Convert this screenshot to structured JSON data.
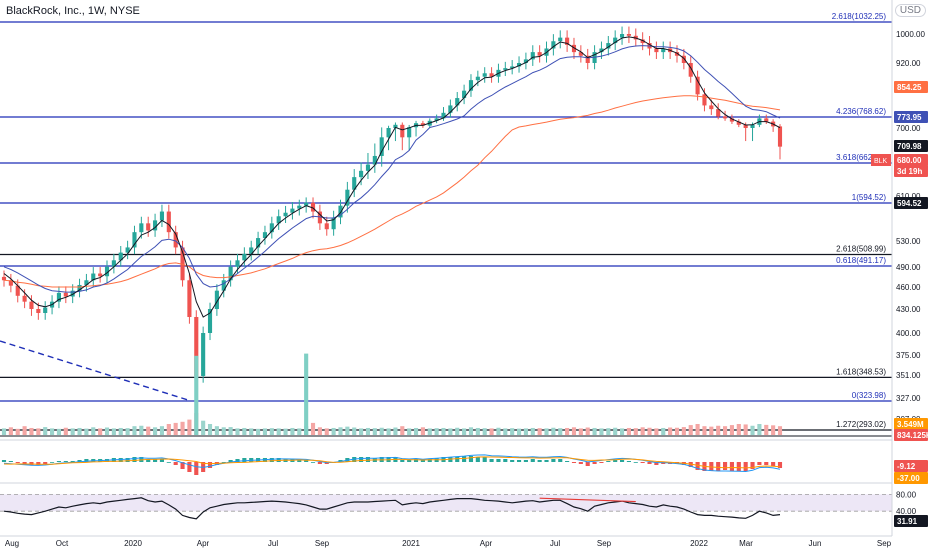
{
  "header": {
    "title": "BlackRock, Inc., 1W, NYSE",
    "currency": "USD"
  },
  "colors": {
    "up": "#26a69a",
    "down": "#ef5350",
    "ema_fast": "#131722",
    "ema_mid": "#3f51b5",
    "ema_slow": "#ff7043",
    "hline": "#1f2fb7",
    "volume_spike": "#7fcfc4",
    "rsi_bg": "#ede7f6",
    "rsi_line": "#131722",
    "divergence": "#e53935",
    "trend": "#1f2fb7"
  },
  "chart_data": {
    "type": "candlestick",
    "price_scale": {
      "ticks": [
        "1000.00",
        "920.00",
        "850.00",
        "700.00",
        "610.00",
        "530.00",
        "490.00",
        "460.00",
        "430.00",
        "400.00",
        "375.00",
        "351.00",
        "327.00",
        "307.00"
      ]
    },
    "time_axis": {
      "ticks": [
        "Aug",
        "Oct",
        "2020",
        "Apr",
        "Jul",
        "Sep",
        "2021",
        "Apr",
        "Jul",
        "Sep",
        "2022",
        "Mar",
        "Jun",
        "Sep"
      ]
    },
    "horizontal_levels": [
      {
        "label": "2.618(1032.25)",
        "value": 1032.25
      },
      {
        "label": "4.236(768.62)",
        "value": 768.62
      },
      {
        "label": "3.618(662.46)",
        "value": 662.46
      },
      {
        "label": "1(594.52)",
        "value": 594.52
      },
      {
        "label": "2.618(508.99)",
        "value": 508.99
      },
      {
        "label": "0.618(491.17)",
        "value": 491.17
      },
      {
        "label": "1.618(348.53)",
        "value": 348.53
      },
      {
        "label": "0(323.98)",
        "value": 323.98
      },
      {
        "label": "1.272(293.02)",
        "value": 293.02
      }
    ],
    "price_badges": [
      {
        "text": "854.25",
        "value": 854.25,
        "color": "#ff7043"
      },
      {
        "text": "773.95",
        "value": 773.95,
        "color": "#3f51b5"
      },
      {
        "text": "709.98",
        "value": 709.98,
        "color": "#131722"
      },
      {
        "text": "680.00",
        "value": 680.0,
        "color": "#ef5350"
      },
      {
        "text": "3d 19h",
        "value": 670.0,
        "color": "#ef5350"
      },
      {
        "text": "594.52",
        "value": 594.52,
        "color": "#131722"
      }
    ],
    "symbol_badge": "BLK",
    "closes": [
      470,
      462,
      448,
      440,
      430,
      425,
      432,
      440,
      452,
      447,
      455,
      463,
      470,
      480,
      476,
      490,
      500,
      512,
      520,
      545,
      560,
      548,
      565,
      580,
      545,
      520,
      470,
      420,
      350,
      400,
      430,
      455,
      470,
      490,
      500,
      510,
      520,
      535,
      545,
      560,
      572,
      578,
      585,
      590,
      595,
      580,
      560,
      550,
      570,
      590,
      620,
      640,
      650,
      660,
      670,
      690,
      700,
      720,
      690,
      705,
      730,
      715,
      745,
      760,
      780,
      800,
      820,
      840,
      870,
      880,
      890,
      880,
      900,
      905,
      910,
      920,
      930,
      950,
      940,
      960,
      980,
      990,
      970,
      950,
      940,
      920,
      950,
      960,
      975,
      990,
      1000,
      995,
      985,
      975,
      960,
      950,
      960,
      950,
      940,
      920,
      880,
      830,
      800,
      790,
      770,
      760,
      740,
      720,
      700,
      720,
      760,
      740,
      710,
      680
    ],
    "ema_fast": [
      480,
      472,
      462,
      452,
      442,
      435,
      433,
      436,
      443,
      446,
      450,
      456,
      463,
      471,
      474,
      481,
      490,
      500,
      510,
      525,
      540,
      545,
      553,
      565,
      558,
      542,
      513,
      480,
      440,
      420,
      425,
      440,
      455,
      472,
      486,
      498,
      509,
      522,
      534,
      547,
      560,
      569,
      577,
      584,
      590,
      586,
      575,
      564,
      566,
      578,
      599,
      620,
      635,
      648,
      659,
      675,
      688,
      704,
      698,
      701,
      716,
      716,
      731,
      746,
      763,
      782,
      801,
      821,
      845,
      863,
      877,
      879,
      890,
      898,
      904,
      912,
      921,
      936,
      938,
      949,
      965,
      978,
      974,
      962,
      951,
      935,
      943,
      952,
      964,
      977,
      989,
      992,
      989,
      982,
      971,
      960,
      960,
      955,
      947,
      933,
      906,
      868,
      834,
      812,
      791,
      775,
      757,
      738,
      719,
      720,
      740,
      740,
      725,
      702
    ],
    "ema_mid": [
      490,
      486,
      481,
      475,
      469,
      463,
      458,
      455,
      454,
      453,
      453,
      454,
      456,
      460,
      462,
      466,
      472,
      479,
      486,
      496,
      506,
      513,
      521,
      531,
      533,
      530,
      520,
      503,
      479,
      465,
      460,
      461,
      465,
      472,
      480,
      488,
      496,
      505,
      514,
      524,
      534,
      543,
      552,
      560,
      568,
      572,
      571,
      569,
      569,
      574,
      584,
      595,
      606,
      617,
      628,
      641,
      653,
      666,
      670,
      676,
      687,
      693,
      703,
      714,
      727,
      741,
      756,
      772,
      790,
      805,
      818,
      827,
      839,
      850,
      860,
      870,
      880,
      892,
      899,
      909,
      921,
      932,
      936,
      937,
      937,
      934,
      936,
      939,
      944,
      951,
      959,
      964,
      967,
      968,
      967,
      965,
      965,
      963,
      960,
      953,
      940,
      922,
      901,
      884,
      866,
      850,
      833,
      815,
      798,
      789,
      787,
      783,
      774,
      762
    ],
    "ema_slow": [
      470,
      469,
      467,
      466,
      464,
      462,
      461,
      460,
      460,
      460,
      460,
      460,
      461,
      462,
      463,
      464,
      466,
      468,
      471,
      475,
      479,
      483,
      487,
      492,
      495,
      496,
      494,
      490,
      482,
      477,
      475,
      474,
      474,
      475,
      477,
      479,
      481,
      484,
      487,
      491,
      495,
      499,
      503,
      508,
      512,
      515,
      517,
      518,
      520,
      523,
      527,
      532,
      538,
      544,
      550,
      557,
      564,
      571,
      576,
      582,
      589,
      594,
      601,
      608,
      615,
      623,
      631,
      640,
      650,
      659,
      668,
      675,
      683,
      691,
      698,
      706,
      713,
      722,
      729,
      737,
      746,
      754,
      760,
      765,
      770,
      773,
      778,
      782,
      787,
      793,
      798,
      803,
      808,
      812,
      815,
      818,
      821,
      823,
      825,
      826,
      826,
      825,
      823,
      820,
      817,
      814,
      810,
      806,
      801,
      798,
      796,
      794,
      791,
      788
    ],
    "volume": [
      0.3,
      0.35,
      0.28,
      0.4,
      0.32,
      0.3,
      0.36,
      0.3,
      0.28,
      0.33,
      0.3,
      0.32,
      0.29,
      0.35,
      0.3,
      0.34,
      0.3,
      0.32,
      0.31,
      0.4,
      0.42,
      0.38,
      0.35,
      0.4,
      0.5,
      0.55,
      0.6,
      0.7,
      1.0,
      0.65,
      0.5,
      0.4,
      0.35,
      0.36,
      0.3,
      0.32,
      0.3,
      0.28,
      0.3,
      0.31,
      0.3,
      0.29,
      0.32,
      0.3,
      0.4,
      0.55,
      0.35,
      0.3,
      0.32,
      0.35,
      0.38,
      0.34,
      0.3,
      0.32,
      0.31,
      0.33,
      0.3,
      0.34,
      0.4,
      0.3,
      0.32,
      0.35,
      0.3,
      0.31,
      0.32,
      0.3,
      0.33,
      0.3,
      0.35,
      0.32,
      0.31,
      0.3,
      0.33,
      0.3,
      0.31,
      0.29,
      0.3,
      0.32,
      0.31,
      0.3,
      0.33,
      0.31,
      0.32,
      0.35,
      0.3,
      0.34,
      0.32,
      0.3,
      0.31,
      0.33,
      0.3,
      0.32,
      0.31,
      0.35,
      0.33,
      0.3,
      0.32,
      0.34,
      0.33,
      0.36,
      0.45,
      0.5,
      0.4,
      0.38,
      0.42,
      0.4,
      0.45,
      0.5,
      0.48,
      0.42,
      0.5,
      0.46,
      0.44,
      0.4
    ],
    "volume_spikes": [
      {
        "index": 28,
        "value": 3.6
      },
      {
        "index": 44,
        "value": 3.7
      }
    ],
    "volume_badges": [
      "3.549M",
      "834.125K"
    ],
    "macd": {
      "histogram": [
        0.2,
        0.1,
        -0.1,
        -0.2,
        -0.3,
        -0.3,
        -0.2,
        0.0,
        0.1,
        0.1,
        0.1,
        0.2,
        0.3,
        0.3,
        0.3,
        0.3,
        0.4,
        0.4,
        0.4,
        0.5,
        0.5,
        0.3,
        0.3,
        0.3,
        0.0,
        -0.3,
        -0.7,
        -1.0,
        -1.3,
        -1.0,
        -0.6,
        -0.3,
        0.0,
        0.2,
        0.3,
        0.4,
        0.4,
        0.4,
        0.4,
        0.4,
        0.4,
        0.3,
        0.3,
        0.2,
        0.2,
        0.0,
        -0.2,
        -0.2,
        0.0,
        0.2,
        0.4,
        0.5,
        0.5,
        0.5,
        0.4,
        0.5,
        0.5,
        0.5,
        0.2,
        0.2,
        0.3,
        0.2,
        0.3,
        0.4,
        0.5,
        0.5,
        0.5,
        0.6,
        0.6,
        0.5,
        0.5,
        0.3,
        0.3,
        0.3,
        0.2,
        0.2,
        0.2,
        0.3,
        0.2,
        0.2,
        0.3,
        0.3,
        0.1,
        -0.1,
        -0.2,
        -0.4,
        -0.2,
        -0.1,
        0.1,
        0.2,
        0.2,
        0.1,
        0.0,
        -0.1,
        -0.2,
        -0.3,
        -0.2,
        -0.2,
        -0.2,
        -0.3,
        -0.5,
        -0.8,
        -0.9,
        -0.9,
        -0.9,
        -0.8,
        -0.9,
        -0.9,
        -0.9,
        -0.7,
        -0.3,
        -0.3,
        -0.4,
        -0.6
      ],
      "badges": [
        "-9.12",
        "-37.00"
      ]
    },
    "rsi": {
      "values": [
        40,
        38,
        35,
        33,
        32,
        36,
        40,
        45,
        50,
        48,
        52,
        55,
        58,
        60,
        58,
        62,
        64,
        66,
        68,
        70,
        72,
        65,
        62,
        64,
        55,
        45,
        30,
        25,
        22,
        38,
        48,
        52,
        56,
        58,
        60,
        60,
        61,
        62,
        63,
        64,
        63,
        62,
        60,
        58,
        55,
        50,
        45,
        45,
        50,
        55,
        60,
        62,
        62,
        62,
        63,
        64,
        65,
        66,
        55,
        58,
        60,
        58,
        62,
        64,
        66,
        68,
        70,
        70,
        70,
        68,
        66,
        65,
        64,
        62,
        60,
        62,
        64,
        65,
        62,
        64,
        66,
        66,
        58,
        50,
        46,
        40,
        52,
        56,
        60,
        62,
        64,
        60,
        58,
        56,
        52,
        50,
        55,
        52,
        50,
        45,
        38,
        32,
        30,
        30,
        28,
        27,
        26,
        24,
        23,
        30,
        40,
        36,
        30,
        32
      ],
      "levels": [
        "80.00",
        "40.00"
      ],
      "current": "31.91"
    }
  }
}
